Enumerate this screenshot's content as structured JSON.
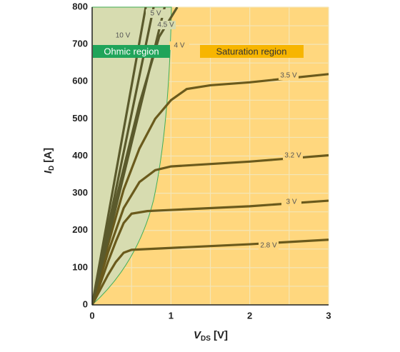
{
  "chart_data": {
    "type": "line",
    "ylabel": {
      "main": "I",
      "sub": "D",
      "unit": "[A]"
    },
    "xlabel": {
      "main": "V",
      "sub": "DS",
      "unit": "[V]"
    },
    "regions": [
      "Ohmic region",
      "Saturation region"
    ],
    "xlim": [
      0,
      3
    ],
    "xticks": [
      0,
      1,
      2,
      3
    ],
    "ylim": [
      0,
      800
    ],
    "yticks": [
      0,
      100,
      200,
      300,
      400,
      500,
      600,
      700,
      800
    ],
    "grid": true,
    "series": [
      {
        "name": "2.8 V",
        "color": "#6a5a1c",
        "x": [
          0,
          0.1,
          0.2,
          0.3,
          0.4,
          0.5,
          1,
          2,
          3
        ],
        "values": [
          0,
          40,
          80,
          115,
          140,
          148,
          153,
          163,
          175
        ]
      },
      {
        "name": "3 V",
        "color": "#6a5a1c",
        "x": [
          0,
          0.1,
          0.2,
          0.3,
          0.4,
          0.5,
          0.7,
          1,
          2,
          3
        ],
        "values": [
          0,
          55,
          115,
          170,
          220,
          245,
          252,
          255,
          265,
          280
        ]
      },
      {
        "name": "3.2 V",
        "color": "#6a5a1c",
        "x": [
          0,
          0.2,
          0.4,
          0.6,
          0.8,
          1,
          2,
          3
        ],
        "values": [
          0,
          140,
          260,
          330,
          362,
          372,
          385,
          402
        ]
      },
      {
        "name": "3.5 V",
        "color": "#6a5a1c",
        "x": [
          0,
          0.2,
          0.4,
          0.6,
          0.8,
          1,
          1.2,
          1.5,
          2,
          3
        ],
        "values": [
          0,
          160,
          310,
          420,
          500,
          550,
          580,
          590,
          598,
          620
        ]
      },
      {
        "name": "4 V",
        "color": "#5b5a2c",
        "x": [
          0,
          0.3,
          0.6,
          0.85,
          1.08
        ],
        "values": [
          0,
          280,
          540,
          720,
          800
        ]
      },
      {
        "name": "4.5 V",
        "color": "#5b5a2c",
        "x": [
          0,
          0.92
        ],
        "values": [
          0,
          800
        ]
      },
      {
        "name": "5 V",
        "color": "#5b5a2c",
        "x": [
          0,
          0.78
        ],
        "values": [
          0,
          800
        ]
      },
      {
        "name": "10 V",
        "color": "#5b5a2c",
        "x": [
          0,
          0.68
        ],
        "values": [
          0,
          800
        ]
      }
    ]
  }
}
